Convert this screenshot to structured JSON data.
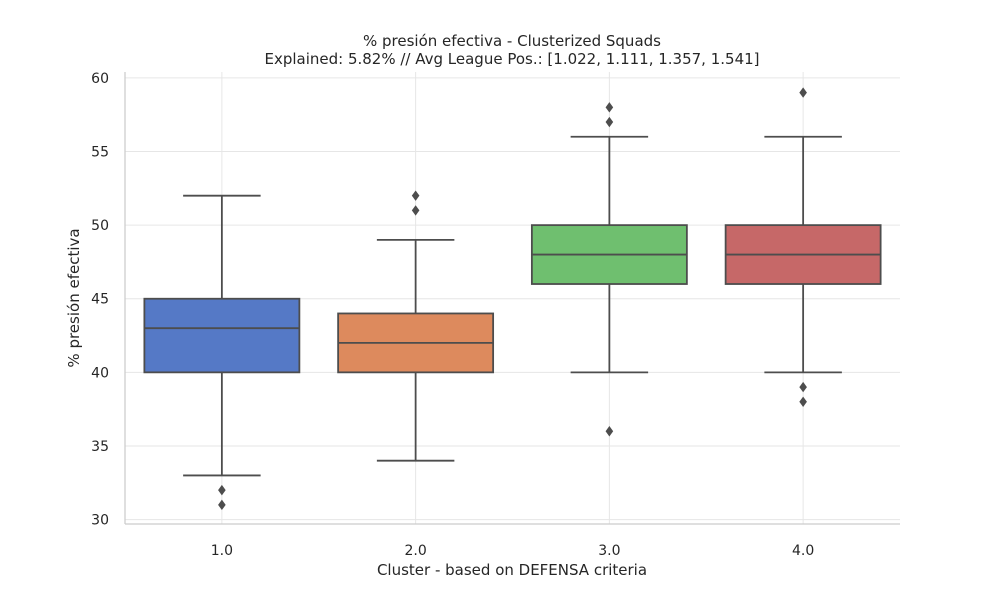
{
  "chart_data": {
    "type": "box",
    "title": "% presión efectiva - Clusterized Squads",
    "subtitle": "Explained: 5.82% // Avg League Pos.: [1.022, 1.111, 1.357, 1.541]",
    "xlabel": "Cluster - based on DEFENSA criteria",
    "ylabel": "% presión efectiva",
    "categories": [
      "1.0",
      "2.0",
      "3.0",
      "4.0"
    ],
    "ylim": [
      29.7,
      60.4
    ],
    "yticks": [
      30,
      35,
      40,
      45,
      50,
      55,
      60
    ],
    "grid": true,
    "boxes": [
      {
        "category": "1.0",
        "whisker_low": 33,
        "q1": 40,
        "median": 43,
        "q3": 45,
        "whisker_high": 52,
        "outliers": [
          32,
          31
        ],
        "color": "#5579c6"
      },
      {
        "category": "2.0",
        "whisker_low": 34,
        "q1": 40,
        "median": 42,
        "q3": 44,
        "whisker_high": 49,
        "outliers": [
          51,
          52
        ],
        "color": "#dd8a5d"
      },
      {
        "category": "3.0",
        "whisker_low": 40,
        "q1": 46,
        "median": 48,
        "q3": 50,
        "whisker_high": 56,
        "outliers": [
          57,
          58,
          36
        ],
        "color": "#6fbf6f"
      },
      {
        "category": "4.0",
        "whisker_low": 40,
        "q1": 46,
        "median": 48,
        "q3": 50,
        "whisker_high": 56,
        "outliers": [
          59,
          39,
          38
        ],
        "color": "#c66868"
      }
    ]
  }
}
